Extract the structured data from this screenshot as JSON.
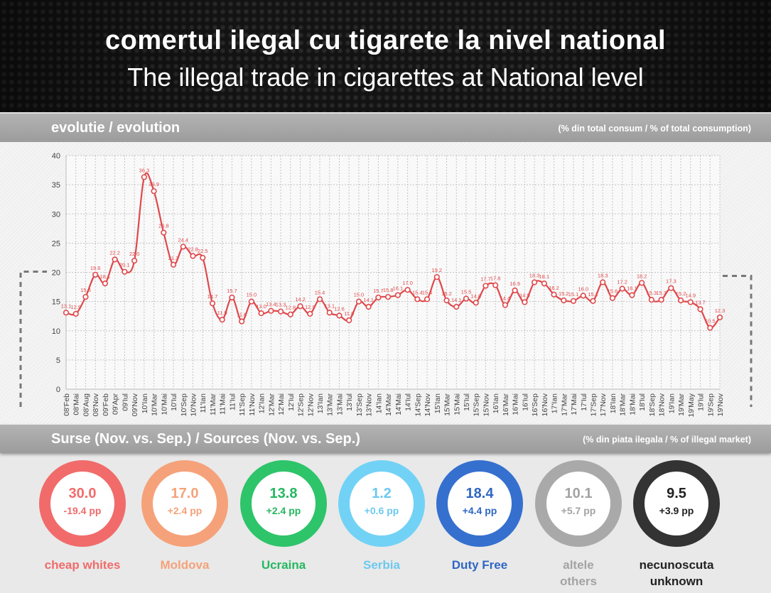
{
  "header": {
    "title_ro": "comertul ilegal cu tigarete la nivel national",
    "title_en": "The illegal trade in cigarettes at National level"
  },
  "evolution_bar": {
    "label": "evolutie / evolution",
    "unit": "(% din total consum / % of total consumption)"
  },
  "sources_bar": {
    "label": "Surse (Nov. vs. Sep.) / Sources (Nov. vs. Sep.)",
    "unit": "(% din piata ilegala / % of illegal market)"
  },
  "colors": {
    "line": "#e0484b",
    "header_bg": "#181818",
    "bar_bg": "#a8a8a8"
  },
  "chart_data": {
    "type": "line",
    "ylim": [
      0,
      40
    ],
    "yticks": [
      0,
      5,
      10,
      15,
      20,
      25,
      30,
      35,
      40
    ],
    "grid": true,
    "categories": [
      "08'Feb",
      "08'Mai",
      "08'Aug",
      "08'Nov",
      "09'Feb",
      "09'Apr",
      "09'Iul",
      "09'Nov",
      "10'Ian",
      "10'Mar",
      "10'Mai",
      "10'Iul",
      "10'Sep",
      "10'Nov",
      "11'Ian",
      "11'Mar",
      "11'Mai",
      "11'Iul",
      "11'Sep",
      "11'Nov",
      "12'Ian",
      "12'Mar",
      "12'Mai",
      "12'Iul",
      "12'Sep",
      "12'Nov",
      "13'Ian",
      "13'Mar",
      "13'Mai",
      "13'Iul",
      "13'Sep",
      "13'Nov",
      "14'Ian",
      "14'Mar",
      "14'Mai",
      "14'Iul",
      "14'Sep",
      "14'Nov",
      "15'Ian",
      "15'Mar",
      "15'Mai",
      "15'Iul",
      "15'Sep",
      "15'Nov",
      "16'Ian",
      "16'Mar",
      "16'Mai",
      "16'Iul",
      "16'Sep",
      "16'Nov",
      "17'Ian",
      "17'Mar",
      "17'Mai",
      "17'Iul",
      "17'Sep",
      "17'Nov",
      "18'Ian",
      "18'Mar",
      "18'Mai",
      "18'Iul",
      "18'Sep",
      "18'Nov",
      "19'Ian",
      "19'Mar",
      "19'May",
      "19'Iul",
      "19'Sep",
      "19'Nov"
    ],
    "values": [
      13.1,
      12.9,
      15.8,
      19.6,
      18.1,
      22.2,
      20.1,
      22.0,
      36.3,
      33.9,
      26.8,
      21.3,
      24.4,
      22.8,
      22.5,
      14.7,
      11.9,
      15.7,
      11.6,
      15.0,
      13.0,
      13.4,
      13.3,
      12.8,
      14.2,
      12.9,
      15.4,
      13.1,
      12.6,
      11.8,
      15.0,
      14.1,
      15.7,
      15.8,
      16.1,
      17.0,
      15.4,
      15.4,
      19.2,
      15.2,
      14.1,
      15.5,
      14.8,
      17.7,
      17.8,
      14.4,
      16.9,
      14.9,
      18.3,
      18.1,
      16.2,
      15.2,
      15.1,
      16.0,
      15.1,
      18.3,
      15.6,
      17.2,
      16.1,
      18.2,
      15.3,
      15.3,
      17.3,
      15.2,
      14.9,
      13.7,
      10.5,
      12.3
    ],
    "data_labels": [
      "13.1",
      "12.9",
      "15.8",
      "19.6",
      "18.1",
      "22.2",
      "20.1",
      "22.0",
      "36.3",
      "33.9",
      "26.8",
      "21.3",
      "24.4",
      "22.8",
      "22.5",
      "14.7",
      "11.9",
      "15.7",
      "11.6",
      "15.0",
      "13.0",
      "13.4",
      "13.3",
      "12.8",
      "14.2",
      "12.9",
      "15.4",
      "13.1",
      "12.6",
      "11.8",
      "15.0",
      "14.1",
      "15.7",
      "15.8",
      "16.1",
      "17.0",
      "15.4",
      "15.4",
      "19.2",
      "15.2",
      "14.1",
      "15.5",
      "14.8",
      "17.7",
      "17.8",
      "14.4",
      "16.9",
      "14.9",
      "18.3",
      "18.1",
      "16.2",
      "15.2",
      "15.1",
      "16.0",
      "15.1",
      "18.3",
      "15.6",
      "17.2",
      "16.1",
      "18.2",
      "15.3",
      "15.3",
      "17.3",
      "15.2",
      "14.9",
      "13.7",
      "10.5",
      "12.3"
    ]
  },
  "sources": [
    {
      "value": "30.0",
      "change": "-19.4 pp",
      "name1": "cheap whites",
      "name2": "",
      "ring_color": "#f16b6b",
      "text_color": "#f16b6b"
    },
    {
      "value": "17.0",
      "change": "+2.4 pp",
      "name1": "Moldova",
      "name2": "",
      "ring_color": "#f5a27a",
      "text_color": "#f5a27a"
    },
    {
      "value": "13.8",
      "change": "+2.4 pp",
      "name1": "Ucraina",
      "name2": "",
      "ring_color": "#2ec46a",
      "text_color": "#25b75f"
    },
    {
      "value": "1.2",
      "change": "+0.6 pp",
      "name1": "Serbia",
      "name2": "",
      "ring_color": "#72d2f6",
      "text_color": "#6cc9ef"
    },
    {
      "value": "18.4",
      "change": "+4.4 pp",
      "name1": "Duty Free",
      "name2": "",
      "ring_color": "#3570cf",
      "text_color": "#2f66c4"
    },
    {
      "value": "10.1",
      "change": "+5.7 pp",
      "name1": "altele",
      "name2": "others",
      "ring_color": "#a9a9a9",
      "text_color": "#a3a3a3"
    },
    {
      "value": "9.5",
      "change": "+3.9 pp",
      "name1": "necunoscuta",
      "name2": "unknown",
      "ring_color": "#333333",
      "text_color": "#222222"
    }
  ]
}
